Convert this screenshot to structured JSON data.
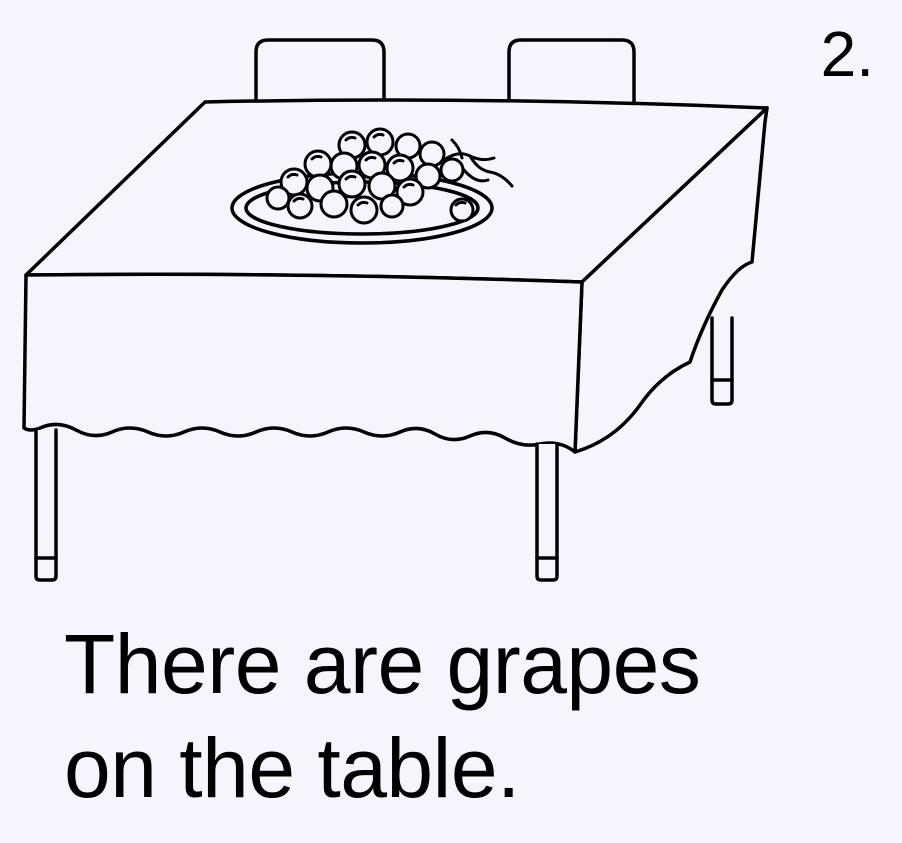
{
  "page_number": "2.",
  "caption": {
    "line1": "There are grapes",
    "line2": "on the table."
  },
  "illustration": {
    "subject": "table-with-grapes",
    "colors": {
      "line": "#000000",
      "fill": "#f5f6fd"
    }
  }
}
